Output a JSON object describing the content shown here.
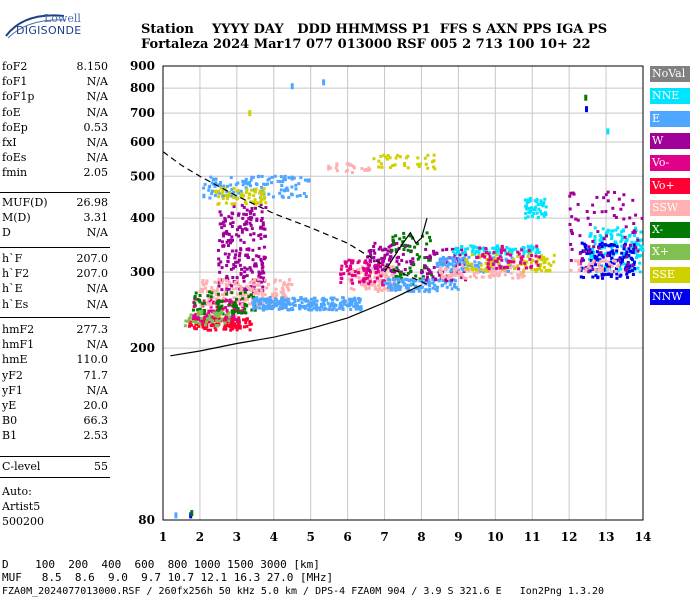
{
  "logo": {
    "line1": "Lowell",
    "line2": "DIGISONDE"
  },
  "header": {
    "row1": "Station    YYYY DAY   DDD HHMMSS P1  FFS S AXN PPS IGA PS",
    "row2": "Fortaleza 2024 Mar17 077 013000 RSF 005 2 713 100 10+ 22"
  },
  "params_group1": [
    {
      "name": "foF2",
      "value": "8.150"
    },
    {
      "name": "foF1",
      "value": "N/A"
    },
    {
      "name": "foF1p",
      "value": "N/A"
    },
    {
      "name": "foE",
      "value": "N/A"
    },
    {
      "name": "foEp",
      "value": "0.53"
    },
    {
      "name": "fxI",
      "value": "N/A"
    },
    {
      "name": "foEs",
      "value": "N/A"
    },
    {
      "name": "fmin",
      "value": "2.05"
    }
  ],
  "params_group2": [
    {
      "name": "MUF(D)",
      "value": "26.98"
    },
    {
      "name": "M(D)",
      "value": "3.31"
    },
    {
      "name": "D",
      "value": "N/A"
    }
  ],
  "params_group3": [
    {
      "name": "h`F",
      "value": "207.0"
    },
    {
      "name": "h`F2",
      "value": "207.0"
    },
    {
      "name": "h`E",
      "value": "N/A"
    },
    {
      "name": "h`Es",
      "value": "N/A"
    }
  ],
  "params_group4": [
    {
      "name": "hmF2",
      "value": "277.3"
    },
    {
      "name": "hmF1",
      "value": "N/A"
    },
    {
      "name": "hmE",
      "value": "110.0"
    },
    {
      "name": "yF2",
      "value": "71.7"
    },
    {
      "name": "yF1",
      "value": "N/A"
    },
    {
      "name": "yE",
      "value": "20.0"
    },
    {
      "name": "B0",
      "value": "66.3"
    },
    {
      "name": "B1",
      "value": "2.53"
    }
  ],
  "params_group5": [
    {
      "name": "C-level",
      "value": "55"
    }
  ],
  "auto": {
    "line1": "Auto:",
    "line2": "Artist5",
    "line3": "500200"
  },
  "footer": {
    "dist_row": "D    100  200  400  600  800 1000 1500 3000 [km]",
    "muf_row": "MUF   8.5  8.6  9.0  9.7 10.7 12.1 16.3 27.0 [MHz]",
    "file_row": "FZA0M_2024077013000.RSF / 260fx256h 50 kHz 5.0 km / DPS-4 FZA0M 904 / 3.9 S 321.6 E   Ion2Png 1.3.20"
  },
  "chart_data": {
    "type": "scatter",
    "title": "",
    "xlabel": "",
    "ylabel": "",
    "xlim": [
      1,
      14
    ],
    "ylim": [
      80,
      900
    ],
    "y_scale": "log",
    "x_ticks": [
      1,
      2,
      3,
      4,
      5,
      6,
      7,
      8,
      9,
      10,
      11,
      12,
      13,
      14
    ],
    "y_ticks": [
      80,
      200,
      300,
      400,
      500,
      600,
      700,
      800,
      900
    ],
    "grid": true,
    "legend_position": "right",
    "legend": [
      {
        "label": "NoVal",
        "color": "#808080"
      },
      {
        "label": "NNE",
        "color": "#00e5ff"
      },
      {
        "label": "E",
        "color": "#4da6ff"
      },
      {
        "label": "W",
        "color": "#a0009a"
      },
      {
        "label": "Vo-",
        "color": "#e0008a"
      },
      {
        "label": "Vo+",
        "color": "#ff0033"
      },
      {
        "label": "SSW",
        "color": "#ffb0b0"
      },
      {
        "label": "X-",
        "color": "#007a00"
      },
      {
        "label": "X+",
        "color": "#80c050"
      },
      {
        "label": "SSE",
        "color": "#d0d000"
      },
      {
        "label": "NNW",
        "color": "#0000ee"
      }
    ],
    "clusters": [
      {
        "color": "#ff0033",
        "fmin": 1.7,
        "fmax": 3.4,
        "hmin": 220,
        "hmax": 235,
        "n": 120
      },
      {
        "color": "#e0008a",
        "fmin": 1.8,
        "fmax": 3.2,
        "hmin": 230,
        "hmax": 260,
        "n": 100
      },
      {
        "color": "#a0009a",
        "fmin": 2.5,
        "fmax": 3.8,
        "hmin": 270,
        "hmax": 430,
        "n": 220
      },
      {
        "color": "#ffb0b0",
        "fmin": 2.0,
        "fmax": 4.5,
        "hmin": 250,
        "hmax": 290,
        "n": 180
      },
      {
        "color": "#007a00",
        "fmin": 1.8,
        "fmax": 3.5,
        "hmin": 240,
        "hmax": 270,
        "n": 70
      },
      {
        "color": "#80c050",
        "fmin": 1.6,
        "fmax": 2.8,
        "hmin": 225,
        "hmax": 245,
        "n": 50
      },
      {
        "color": "#4da6ff",
        "fmin": 3.4,
        "fmax": 6.4,
        "hmin": 245,
        "hmax": 262,
        "n": 240
      },
      {
        "color": "#4da6ff",
        "fmin": 2.1,
        "fmax": 5.0,
        "hmin": 445,
        "hmax": 500,
        "n": 120
      },
      {
        "color": "#d0d000",
        "fmin": 2.4,
        "fmax": 3.8,
        "hmin": 430,
        "hmax": 470,
        "n": 60
      },
      {
        "color": "#d0d000",
        "fmin": 6.7,
        "fmax": 8.4,
        "hmin": 520,
        "hmax": 560,
        "n": 35
      },
      {
        "color": "#ffb0b0",
        "fmin": 5.4,
        "fmax": 6.6,
        "hmin": 510,
        "hmax": 535,
        "n": 25
      },
      {
        "color": "#ffb0b0",
        "fmin": 6.0,
        "fmax": 7.3,
        "hmin": 270,
        "hmax": 310,
        "n": 120
      },
      {
        "color": "#e0008a",
        "fmin": 5.8,
        "fmax": 7.0,
        "hmin": 280,
        "hmax": 320,
        "n": 80
      },
      {
        "color": "#a0009a",
        "fmin": 6.5,
        "fmax": 7.8,
        "hmin": 300,
        "hmax": 350,
        "n": 70
      },
      {
        "color": "#007a00",
        "fmin": 7.2,
        "fmax": 8.3,
        "hmin": 280,
        "hmax": 370,
        "n": 60
      },
      {
        "color": "#4da6ff",
        "fmin": 7.0,
        "fmax": 9.0,
        "hmin": 270,
        "hmax": 290,
        "n": 110
      },
      {
        "color": "#a0009a",
        "fmin": 8.0,
        "fmax": 9.2,
        "hmin": 285,
        "hmax": 340,
        "n": 70
      },
      {
        "color": "#00e5ff",
        "fmin": 8.8,
        "fmax": 11.2,
        "hmin": 330,
        "hmax": 345,
        "n": 90
      },
      {
        "color": "#4da6ff",
        "fmin": 8.4,
        "fmax": 10.5,
        "hmin": 300,
        "hmax": 325,
        "n": 100
      },
      {
        "color": "#ffb0b0",
        "fmin": 8.5,
        "fmax": 10.8,
        "hmin": 290,
        "hmax": 310,
        "n": 100
      },
      {
        "color": "#d0d000",
        "fmin": 9.2,
        "fmax": 11.6,
        "hmin": 300,
        "hmax": 330,
        "n": 90
      },
      {
        "color": "#e0008a",
        "fmin": 9.5,
        "fmax": 11.2,
        "hmin": 305,
        "hmax": 345,
        "n": 60
      },
      {
        "color": "#00e5ff",
        "fmin": 10.8,
        "fmax": 11.4,
        "hmin": 400,
        "hmax": 445,
        "n": 50
      },
      {
        "color": "#00e5ff",
        "fmin": 12.5,
        "fmax": 14.0,
        "hmin": 300,
        "hmax": 380,
        "n": 150
      },
      {
        "color": "#0000ee",
        "fmin": 12.3,
        "fmax": 13.8,
        "hmin": 290,
        "hmax": 350,
        "n": 140
      },
      {
        "color": "#a0009a",
        "fmin": 12.0,
        "fmax": 14.0,
        "hmin": 300,
        "hmax": 460,
        "n": 80
      },
      {
        "color": "#ffb0b0",
        "fmin": 12.0,
        "fmax": 13.4,
        "hmin": 300,
        "hmax": 320,
        "n": 40
      }
    ],
    "isolated_points": [
      {
        "f": 1.35,
        "h": 82,
        "color": "#4da6ff"
      },
      {
        "f": 1.75,
        "h": 82,
        "color": "#0000ee"
      },
      {
        "f": 1.78,
        "h": 83,
        "color": "#007a00"
      },
      {
        "f": 3.35,
        "h": 700,
        "color": "#d0d000"
      },
      {
        "f": 4.5,
        "h": 808,
        "color": "#4da6ff"
      },
      {
        "f": 5.35,
        "h": 825,
        "color": "#4da6ff"
      },
      {
        "f": 12.45,
        "h": 760,
        "color": "#007a00"
      },
      {
        "f": 12.47,
        "h": 715,
        "color": "#0000ee"
      },
      {
        "f": 13.05,
        "h": 635,
        "color": "#00e5ff"
      }
    ],
    "dashed_curve": [
      [
        1,
        570
      ],
      [
        1.5,
        530
      ],
      [
        2,
        500
      ],
      [
        3,
        450
      ],
      [
        4,
        410
      ],
      [
        5,
        380
      ],
      [
        6,
        350
      ],
      [
        7,
        310
      ],
      [
        7.8,
        290
      ],
      [
        8.2,
        280
      ]
    ],
    "solid_curve": [
      [
        1.2,
        192
      ],
      [
        2,
        197
      ],
      [
        3,
        205
      ],
      [
        4,
        212
      ],
      [
        5,
        222
      ],
      [
        6,
        235
      ],
      [
        7,
        255
      ],
      [
        7.6,
        270
      ],
      [
        8.0,
        280
      ]
    ],
    "solid_curve_upper": [
      [
        7.0,
        300
      ],
      [
        7.4,
        340
      ],
      [
        7.7,
        370
      ],
      [
        7.85,
        350
      ],
      [
        8.0,
        360
      ],
      [
        8.15,
        400
      ]
    ]
  }
}
